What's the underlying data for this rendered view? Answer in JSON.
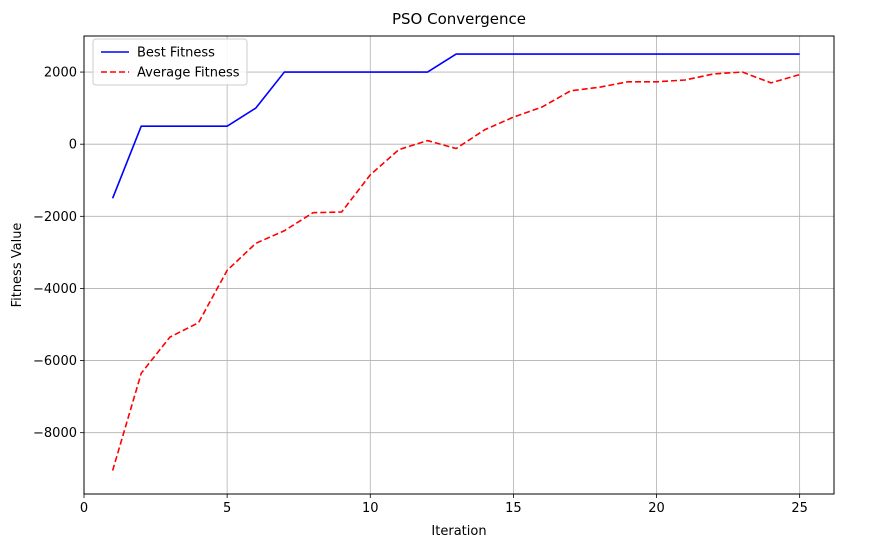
{
  "chart_data": {
    "type": "line",
    "title": "PSO Convergence",
    "xlabel": "Iteration",
    "ylabel": "Fitness Value",
    "xlim": [
      0,
      26.2
    ],
    "ylim": [
      -9700,
      3000
    ],
    "xticks": [
      0,
      5,
      10,
      15,
      20,
      25
    ],
    "yticks": [
      -8000,
      -6000,
      -4000,
      -2000,
      0,
      2000
    ],
    "grid": true,
    "legend_position": "top-left",
    "x": [
      1,
      2,
      3,
      4,
      5,
      6,
      7,
      8,
      9,
      10,
      11,
      12,
      13,
      14,
      15,
      16,
      17,
      18,
      19,
      20,
      21,
      22,
      23,
      24,
      25
    ],
    "series": [
      {
        "name": "Best Fitness",
        "color": "#0000ff",
        "dash": "solid",
        "values": [
          -1500,
          500,
          500,
          500,
          500,
          1000,
          2000,
          2000,
          2000,
          2000,
          2000,
          2000,
          2500,
          2500,
          2500,
          2500,
          2500,
          2500,
          2500,
          2500,
          2500,
          2500,
          2500,
          2500,
          2500
        ]
      },
      {
        "name": "Average Fitness",
        "color": "#ff0000",
        "dash": "dashed",
        "values": [
          -9050,
          -6350,
          -5350,
          -4950,
          -3500,
          -2750,
          -2400,
          -1900,
          -1880,
          -850,
          -150,
          100,
          -120,
          400,
          750,
          1030,
          1480,
          1580,
          1730,
          1730,
          1780,
          1950,
          2000,
          1700,
          1930
        ]
      }
    ]
  }
}
